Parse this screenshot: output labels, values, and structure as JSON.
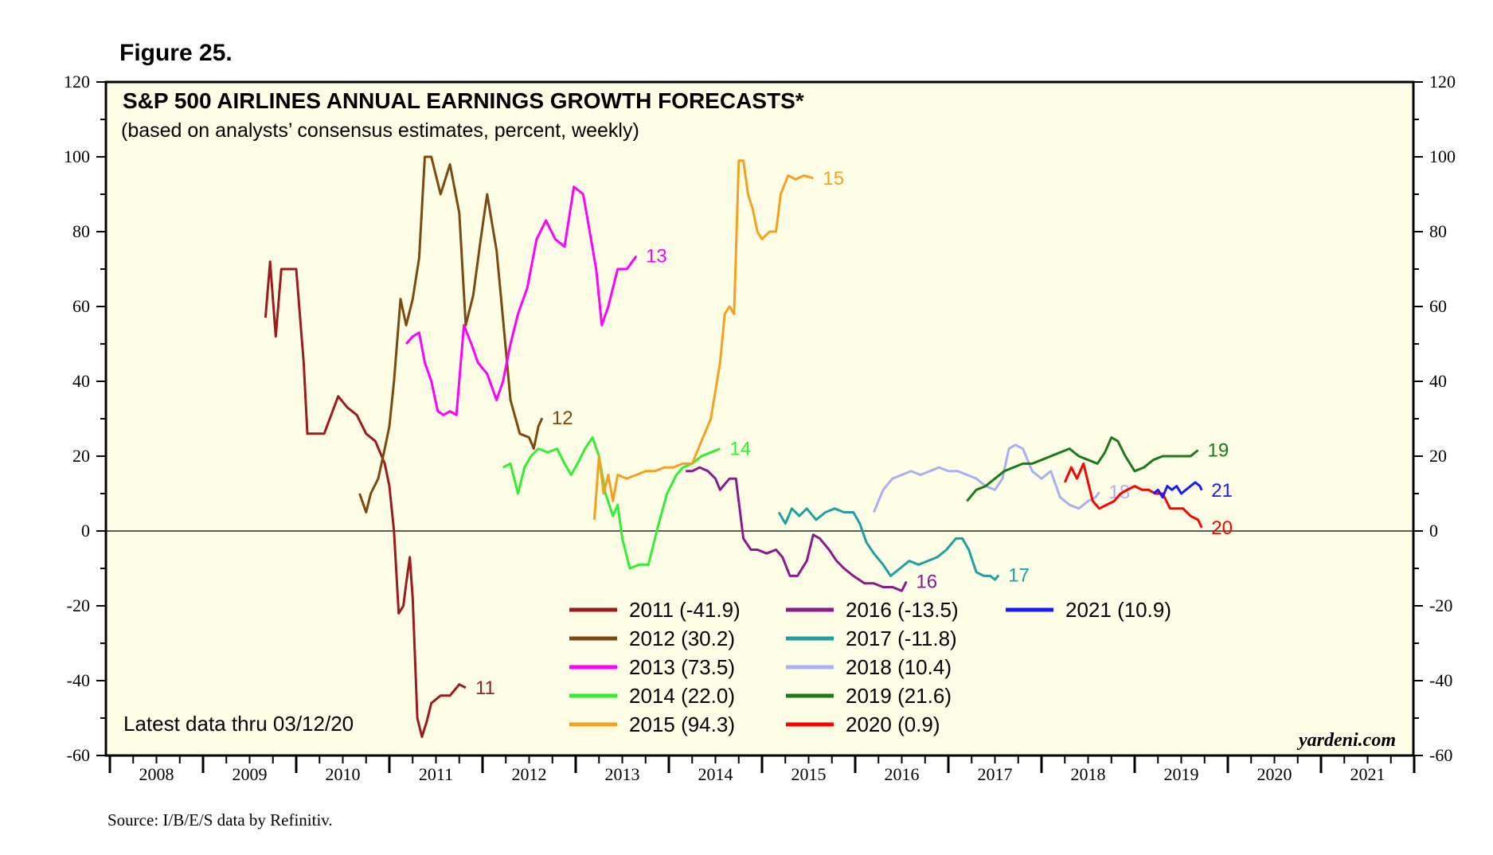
{
  "figure_label": "Figure 25.",
  "source": "Source: I/B/E/S data by Refinitiv.",
  "chart_data": {
    "type": "line",
    "title": "S&P 500 AIRLINES ANNUAL EARNINGS GROWTH FORECASTS*",
    "subtitle": "(based on analysts’ consensus estimates, percent, weekly)",
    "note": "Latest data thru 03/12/20",
    "watermark": "yardeni.com",
    "ylim": [
      -60,
      120
    ],
    "y_ticks": [
      "120",
      "100",
      "80",
      "60",
      "40",
      "20",
      "0",
      "-20",
      "-40",
      "-60"
    ],
    "xlim": [
      2008,
      2022
    ],
    "x_ticks": [
      "2008",
      "2009",
      "2010",
      "2011",
      "2012",
      "2013",
      "2014",
      "2015",
      "2016",
      "2017",
      "2018",
      "2019",
      "2020",
      "2021"
    ],
    "zero_line": true,
    "series": [
      {
        "name": "2011",
        "legend": "2011 (-41.9)",
        "end_label": "11",
        "color": "#9b1c1c",
        "x": [
          2009.67,
          2009.72,
          2009.78,
          2009.84,
          2009.92,
          2010.0,
          2010.08,
          2010.12,
          2010.2,
          2010.3,
          2010.45,
          2010.55,
          2010.65,
          2010.75,
          2010.85,
          2010.95,
          2011.0,
          2011.05,
          2011.1,
          2011.15,
          2011.18,
          2011.22,
          2011.25,
          2011.3,
          2011.35,
          2011.4,
          2011.45,
          2011.55,
          2011.65,
          2011.75,
          2011.82
        ],
        "y": [
          57,
          72,
          52,
          70,
          70,
          70,
          45,
          26,
          26,
          26,
          36,
          33,
          31,
          26,
          24,
          18,
          12,
          0,
          -22,
          -20,
          -14,
          -7,
          -18,
          -50,
          -55,
          -51,
          -46,
          -44,
          -44,
          -41,
          -41.9
        ]
      },
      {
        "name": "2012",
        "legend": "2012 (30.2)",
        "end_label": "12",
        "color": "#7b4a12",
        "x": [
          2010.68,
          2010.75,
          2010.8,
          2010.88,
          2010.95,
          2011.0,
          2011.05,
          2011.12,
          2011.18,
          2011.25,
          2011.32,
          2011.38,
          2011.45,
          2011.5,
          2011.55,
          2011.65,
          2011.75,
          2011.82,
          2011.9,
          2011.98,
          2012.05,
          2012.15,
          2012.2,
          2012.3,
          2012.4,
          2012.5,
          2012.55,
          2012.6,
          2012.64
        ],
        "y": [
          10,
          5,
          10,
          14,
          22,
          28,
          40,
          62,
          55,
          62,
          73,
          100,
          100,
          95,
          90,
          98,
          85,
          55,
          63,
          78,
          90,
          75,
          62,
          35,
          26,
          25,
          22,
          28,
          30.2
        ]
      },
      {
        "name": "2013",
        "legend": "2013 (73.5)",
        "end_label": "13",
        "color": "#ff00ff",
        "x": [
          2011.18,
          2011.25,
          2011.32,
          2011.38,
          2011.45,
          2011.52,
          2011.58,
          2011.65,
          2011.72,
          2011.8,
          2011.88,
          2011.95,
          2012.05,
          2012.15,
          2012.22,
          2012.3,
          2012.38,
          2012.48,
          2012.58,
          2012.68,
          2012.78,
          2012.88,
          2012.98,
          2013.08,
          2013.15,
          2013.22,
          2013.28,
          2013.35,
          2013.45,
          2013.55,
          2013.65
        ],
        "y": [
          50,
          52,
          53,
          45,
          40,
          32,
          31,
          32,
          31,
          55,
          50,
          45,
          42,
          35,
          40,
          50,
          58,
          65,
          78,
          83,
          78,
          76,
          92,
          90,
          80,
          70,
          55,
          60,
          70,
          70,
          73.5
        ]
      },
      {
        "name": "2014",
        "legend": "2014 (22.0)",
        "end_label": "14",
        "color": "#33ee33",
        "x": [
          2012.22,
          2012.3,
          2012.38,
          2012.45,
          2012.52,
          2012.6,
          2012.7,
          2012.8,
          2012.88,
          2012.95,
          2013.02,
          2013.1,
          2013.18,
          2013.25,
          2013.32,
          2013.4,
          2013.45,
          2013.5,
          2013.58,
          2013.68,
          2013.78,
          2013.88,
          2013.98,
          2014.08,
          2014.15,
          2014.25,
          2014.35,
          2014.45,
          2014.55
        ],
        "y": [
          17,
          18,
          10,
          17,
          20,
          22,
          21,
          22,
          18,
          15,
          18,
          22,
          25,
          20,
          10,
          4,
          7,
          -2,
          -10,
          -9,
          -9,
          1,
          10,
          15,
          17,
          18,
          20,
          21,
          22.0
        ]
      },
      {
        "name": "2015",
        "legend": "2015 (94.3)",
        "end_label": "15",
        "color": "#f5a020",
        "x": [
          2013.2,
          2013.25,
          2013.3,
          2013.35,
          2013.4,
          2013.45,
          2013.55,
          2013.65,
          2013.75,
          2013.85,
          2013.95,
          2014.05,
          2014.15,
          2014.25,
          2014.35,
          2014.45,
          2014.55,
          2014.6,
          2014.65,
          2014.7,
          2014.75,
          2014.8,
          2014.85,
          2014.9,
          2014.95,
          2015.0,
          2015.08,
          2015.15,
          2015.2,
          2015.28,
          2015.36,
          2015.45,
          2015.55
        ],
        "y": [
          3,
          20,
          10,
          15,
          8,
          15,
          14,
          15,
          16,
          16,
          17,
          17,
          18,
          18,
          24,
          30,
          45,
          58,
          60,
          58,
          99,
          99,
          90,
          86,
          80,
          78,
          80,
          80,
          90,
          95,
          94,
          95,
          94.3
        ]
      },
      {
        "name": "2016",
        "legend": "2016 (-13.5)",
        "end_label": "16",
        "color": "#8b1a8b",
        "x": [
          2014.18,
          2014.25,
          2014.33,
          2014.42,
          2014.5,
          2014.55,
          2014.65,
          2014.72,
          2014.8,
          2014.88,
          2014.95,
          2015.05,
          2015.15,
          2015.22,
          2015.3,
          2015.38,
          2015.48,
          2015.55,
          2015.62,
          2015.72,
          2015.8,
          2015.88,
          2015.98,
          2016.1,
          2016.2,
          2016.3,
          2016.4,
          2016.5,
          2016.55
        ],
        "y": [
          16,
          16,
          17,
          16,
          14,
          11,
          14,
          14,
          -2,
          -5,
          -5,
          -6,
          -5,
          -7,
          -12,
          -12,
          -8,
          -1,
          -2,
          -5,
          -8,
          -10,
          -12,
          -14,
          -14,
          -15,
          -15,
          -16,
          -13.5
        ]
      },
      {
        "name": "2017",
        "legend": "2017 (-11.8)",
        "end_label": "17",
        "color": "#1fa0a0",
        "x": [
          2015.18,
          2015.25,
          2015.32,
          2015.4,
          2015.48,
          2015.58,
          2015.68,
          2015.78,
          2015.88,
          2015.98,
          2016.05,
          2016.12,
          2016.2,
          2016.3,
          2016.38,
          2016.48,
          2016.58,
          2016.68,
          2016.78,
          2016.88,
          2016.98,
          2017.08,
          2017.15,
          2017.22,
          2017.3,
          2017.38,
          2017.45,
          2017.5,
          2017.54
        ],
        "y": [
          5,
          2,
          6,
          4,
          6,
          3,
          5,
          6,
          5,
          5,
          2,
          -3,
          -6,
          -9,
          -12,
          -10,
          -8,
          -9,
          -8,
          -7,
          -5,
          -2,
          -2,
          -5,
          -11,
          -12,
          -12,
          -13,
          -11.8
        ]
      },
      {
        "name": "2018",
        "legend": "2018 (10.4)",
        "end_label": "18",
        "color": "#aab0ee",
        "x": [
          2016.2,
          2016.3,
          2016.4,
          2016.5,
          2016.6,
          2016.7,
          2016.8,
          2016.9,
          2017.0,
          2017.1,
          2017.2,
          2017.3,
          2017.4,
          2017.5,
          2017.58,
          2017.65,
          2017.72,
          2017.8,
          2017.9,
          2018.0,
          2018.1,
          2018.2,
          2018.3,
          2018.4,
          2018.5,
          2018.58,
          2018.62
        ],
        "y": [
          5,
          11,
          14,
          15,
          16,
          15,
          16,
          17,
          16,
          16,
          15,
          14,
          12,
          11,
          14,
          22,
          23,
          22,
          16,
          14,
          16,
          9,
          7,
          6,
          8,
          9,
          10.4
        ]
      },
      {
        "name": "2019",
        "legend": "2019 (21.6)",
        "end_label": "19",
        "color": "#1a7a1a",
        "x": [
          2017.2,
          2017.3,
          2017.4,
          2017.5,
          2017.6,
          2017.7,
          2017.8,
          2017.9,
          2018.0,
          2018.1,
          2018.2,
          2018.3,
          2018.4,
          2018.5,
          2018.6,
          2018.68,
          2018.75,
          2018.82,
          2018.9,
          2019.0,
          2019.1,
          2019.2,
          2019.3,
          2019.4,
          2019.5,
          2019.6,
          2019.68
        ],
        "y": [
          8,
          11,
          12,
          14,
          16,
          17,
          18,
          18,
          19,
          20,
          21,
          22,
          20,
          19,
          18,
          21,
          25,
          24,
          20,
          16,
          17,
          19,
          20,
          20,
          20,
          20,
          21.6
        ]
      },
      {
        "name": "2020",
        "legend": "2020 (0.9)",
        "end_label": "20",
        "color": "#ff0000",
        "x": [
          2018.25,
          2018.32,
          2018.38,
          2018.45,
          2018.5,
          2018.55,
          2018.62,
          2018.7,
          2018.78,
          2018.85,
          2018.92,
          2019.0,
          2019.08,
          2019.15,
          2019.22,
          2019.3,
          2019.38,
          2019.45,
          2019.52,
          2019.6,
          2019.68,
          2019.72
        ],
        "y": [
          13,
          17,
          14,
          18,
          13,
          8,
          6,
          7,
          8,
          10,
          11,
          12,
          11,
          11,
          10,
          10,
          6,
          6,
          6,
          4,
          3,
          0.9
        ]
      },
      {
        "name": "2021",
        "legend": "2021 (10.9)",
        "end_label": "21",
        "color": "#1a1aff",
        "x": [
          2019.2,
          2019.25,
          2019.3,
          2019.35,
          2019.4,
          2019.45,
          2019.5,
          2019.55,
          2019.6,
          2019.65,
          2019.7,
          2019.72
        ],
        "y": [
          10,
          11,
          9,
          12,
          11,
          12,
          10,
          11,
          12,
          13,
          12,
          10.9
        ]
      }
    ]
  }
}
